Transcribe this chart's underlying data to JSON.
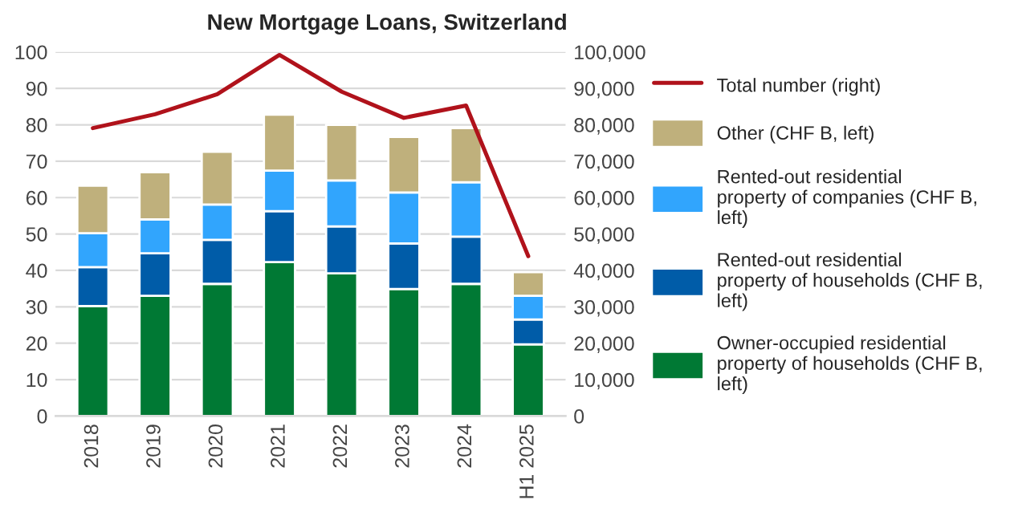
{
  "chart_data": {
    "type": "bar",
    "title": "New Mortgage Loans, Switzerland",
    "categories": [
      "2018",
      "2019",
      "2020",
      "2021",
      "2022",
      "2023",
      "2024",
      "H1 2025"
    ],
    "stacked": true,
    "series": [
      {
        "name": "Owner-occupied residential property of households (CHF B, left)",
        "color": "#007934",
        "values": [
          30.2,
          33.0,
          36.3,
          42.3,
          39.2,
          34.9,
          36.3,
          19.7
        ]
      },
      {
        "name": "Rented-out residential property of households (CHF B, left)",
        "color": "#005ca8",
        "values": [
          10.7,
          11.7,
          12.1,
          14.0,
          12.9,
          12.5,
          13.0,
          6.8
        ]
      },
      {
        "name": "Rented-out residential property of companies (CHF B, left)",
        "color": "#31a5fd",
        "values": [
          9.3,
          9.3,
          9.7,
          11.1,
          12.6,
          14.0,
          14.9,
          6.5
        ]
      },
      {
        "name": "Other (CHF B, left)",
        "color": "#bfb07c",
        "values": [
          13.1,
          13.0,
          14.5,
          15.4,
          15.3,
          15.3,
          14.9,
          6.5
        ]
      },
      {
        "name": "Total number (right)",
        "type": "line",
        "axis": "y2",
        "color": "#b0121b",
        "values": [
          79100,
          82900,
          88400,
          99200,
          89100,
          81900,
          85300,
          43900
        ]
      }
    ],
    "ylim": [
      0,
      100
    ],
    "yticks": [
      0,
      10,
      20,
      30,
      40,
      50,
      60,
      70,
      80,
      90,
      100
    ],
    "y2lim": [
      0,
      100000
    ],
    "y2ticks": [
      {
        "value": 0,
        "label": "0"
      },
      {
        "value": 10000,
        "label": "10,000"
      },
      {
        "value": 20000,
        "label": "20,000"
      },
      {
        "value": 30000,
        "label": "30,000"
      },
      {
        "value": 40000,
        "label": "40,000"
      },
      {
        "value": 50000,
        "label": "50,000"
      },
      {
        "value": 60000,
        "label": "60,000"
      },
      {
        "value": 70000,
        "label": "70,000"
      },
      {
        "value": 80000,
        "label": "80,000"
      },
      {
        "value": 90000,
        "label": "90,000"
      },
      {
        "value": 100000,
        "label": "100,000"
      }
    ],
    "grid": "y",
    "legend": "right"
  }
}
